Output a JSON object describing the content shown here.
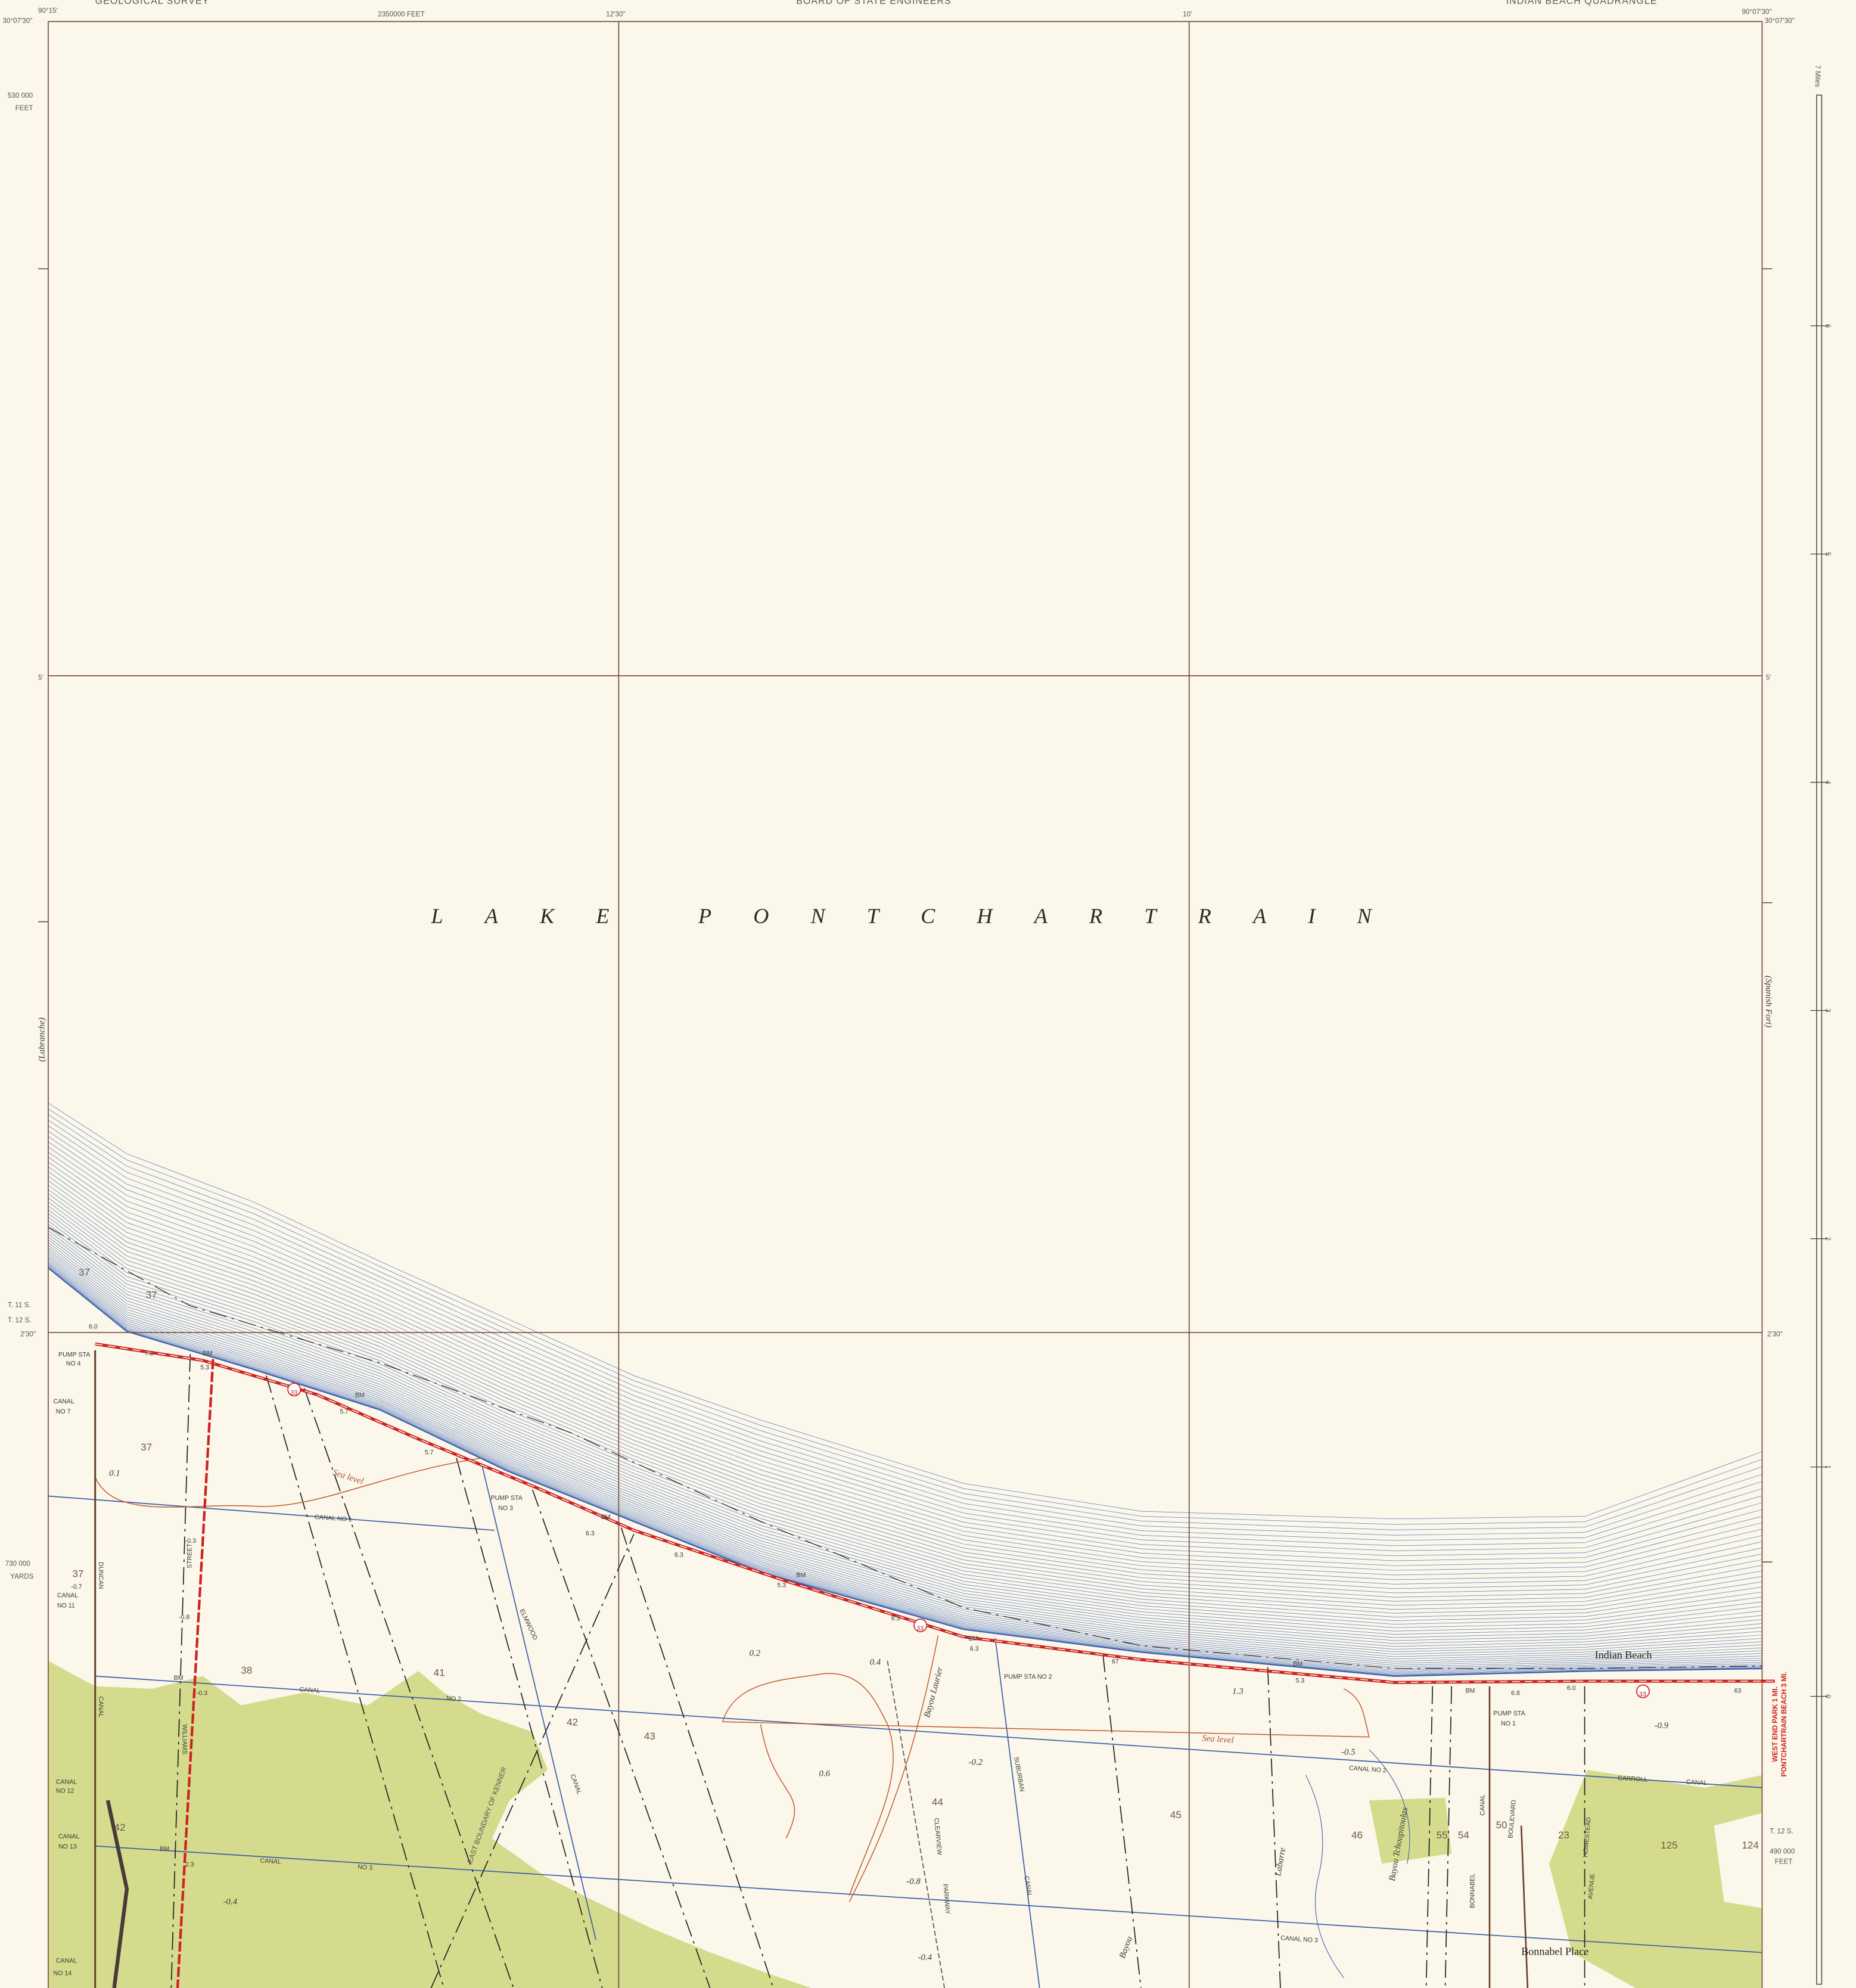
{
  "header": {
    "agency_left": "GEOLOGICAL SURVEY",
    "easting": "2350000 FEET",
    "lon_12_30": "12'30\"",
    "agency_center": "BOARD OF STATE ENGINEERS",
    "lon_10": "10'",
    "quadrangle": "INDIAN BEACH QUADRANGLE"
  },
  "corners": {
    "top_left_lat": "30°07'30\"",
    "top_left_lon": "90°15'",
    "top_right_lon": "90°07'30\"",
    "top_right_lat": "30°07'30\""
  },
  "left_margin": {
    "northing": "530 000",
    "northing_unit": "FEET",
    "lat_5": "5'",
    "adjoining": "(Labranche)",
    "township_11": "T. 11 S.",
    "township_12": "T. 12 S.",
    "lat_2_30": "2'30\"",
    "yards": "730 000",
    "yards_unit": "YARDS"
  },
  "right_margin": {
    "scale_title": "7 Miles",
    "scale_marks": [
      "6",
      "5",
      "4",
      "3",
      "2",
      "1",
      "0"
    ],
    "lat_5": "5'",
    "adjoining": "(Spanish Fort)",
    "lat_2_30": "2'30\"",
    "township_12": "T. 12 S.",
    "northing": "490 000",
    "northing_unit": "FEET",
    "direction_1": "WEST END PARK 1 MI.",
    "direction_2": "PONTCHARTRAIN BEACH 3 MI."
  },
  "water": {
    "lake_name": "LAKE PONTCHARTRAIN"
  },
  "features": [
    "PUMP STA",
    "NO 4",
    "CANAL",
    "NO 7",
    "37",
    "37",
    "37",
    "37",
    "6.0",
    "7.6",
    "BM",
    "5.3",
    "BM",
    "5.7",
    "5.7",
    "33",
    "33",
    "33",
    "0.1",
    "Sea level",
    "Sea level",
    "CANAL NO 1",
    "PUMP STA",
    "NO 3",
    "BM",
    "6.3",
    "6.3",
    "BM",
    "5.3",
    "6.3",
    "BM",
    "6.3",
    "-0.3",
    "-0.7",
    "CANAL",
    "NO 11",
    "-0.8",
    "DUNCAN",
    "CANAL",
    "STREET",
    "WILLIAMS",
    "ELMWOOD",
    "0.2",
    "0.4",
    "Bayou Laurier",
    "BM",
    "-0.3",
    "38",
    "41",
    "CANAL",
    "NO 2",
    "42",
    "43",
    "EAST BOUNDARY OF KENNER",
    "CANAL",
    "PUMP STA NO 2",
    "67",
    "BM",
    "5.3",
    "1.3",
    "-0.2",
    "0.6",
    "44",
    "45",
    "46",
    "SUBURBAN",
    "CANAL",
    "CLEARVIEW",
    "PARKWAY",
    "-0.8",
    "-0.4",
    "-0.5",
    "CANAL NO 2",
    "Indian Beach",
    "BM",
    "6.8",
    "6.0",
    "63",
    "PUMP STA",
    "NO 1",
    "-0.9",
    "CARROLL",
    "CANAL",
    "Bayou Tchoupitoulas",
    "Labarre",
    "Bayou",
    "BONNABEL",
    "CANAL",
    "BOULEVARD",
    "HOMESTEAD",
    "AVENUE",
    "50",
    "54",
    "55",
    "23",
    "125",
    "124",
    "Bonnabel Place",
    "CANAL NO 3",
    "CANAL",
    "NO 3",
    "BM",
    "2.3",
    "-0.4",
    "CANAL",
    "NO 12",
    "CANAL",
    "NO 13",
    "CANAL",
    "NO 14",
    "42"
  ]
}
